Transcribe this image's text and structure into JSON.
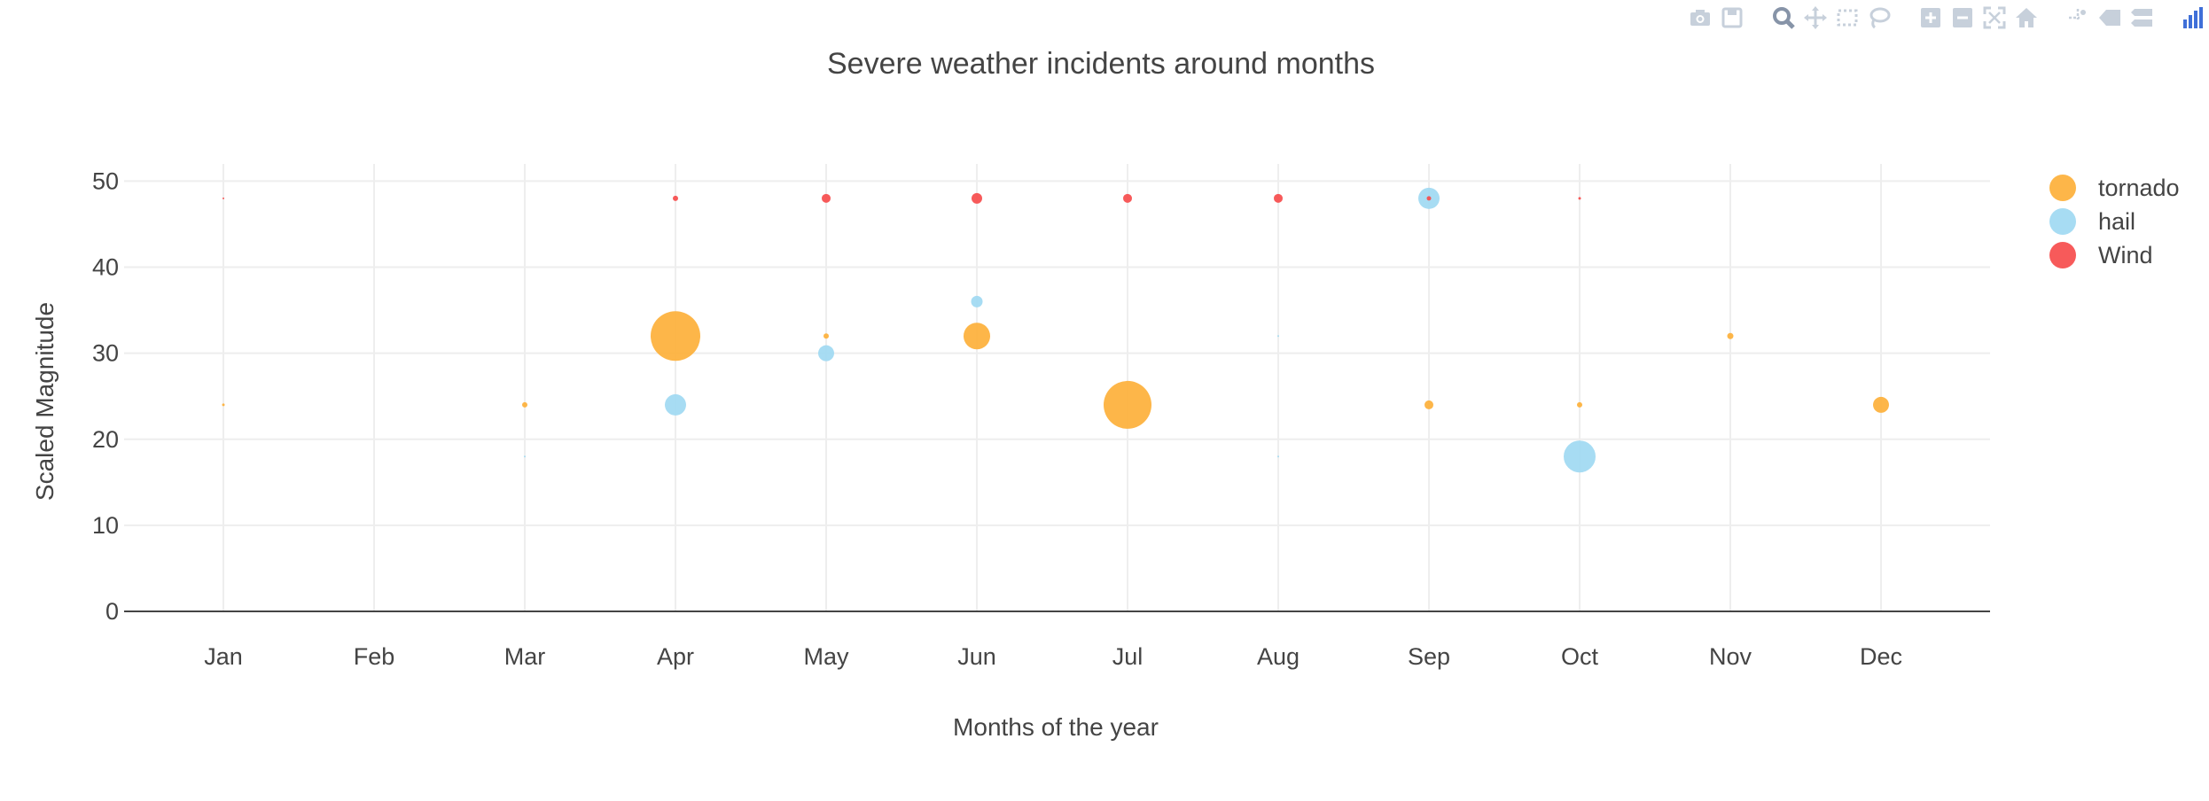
{
  "modebar": {
    "buttons": [
      {
        "group": 1,
        "icon": "camera-icon",
        "name": "download-png-button"
      },
      {
        "group": 1,
        "icon": "save-icon",
        "name": "save-to-cloud-button"
      },
      {
        "group": 2,
        "icon": "zoom-icon",
        "name": "zoom-button",
        "active": true
      },
      {
        "group": 2,
        "icon": "pan-icon",
        "name": "pan-button"
      },
      {
        "group": 2,
        "icon": "box-select-icon",
        "name": "box-select-button"
      },
      {
        "group": 2,
        "icon": "lasso-icon",
        "name": "lasso-select-button"
      },
      {
        "group": 3,
        "icon": "zoom-in-icon",
        "name": "zoom-in-button"
      },
      {
        "group": 3,
        "icon": "zoom-out-icon",
        "name": "zoom-out-button"
      },
      {
        "group": 3,
        "icon": "autoscale-icon",
        "name": "autoscale-button"
      },
      {
        "group": 3,
        "icon": "home-icon",
        "name": "reset-axes-button"
      },
      {
        "group": 4,
        "icon": "spike-lines-icon",
        "name": "toggle-spike-lines-button"
      },
      {
        "group": 4,
        "icon": "hover-closest-icon",
        "name": "hover-closest-button"
      },
      {
        "group": 4,
        "icon": "hover-compare-icon",
        "name": "hover-compare-button"
      },
      {
        "group": 5,
        "icon": "plotly-logo-icon",
        "name": "plotly-logo-link"
      }
    ],
    "colors": {
      "icon": "#c7d0db",
      "active": "#8794a8",
      "logo": "#3f6fd8"
    }
  },
  "chart_data": {
    "type": "scatter",
    "title": "Severe weather incidents around months",
    "xlabel": "Months of the year",
    "ylabel": "Scaled Magnitude",
    "categories": [
      "Jan",
      "Feb",
      "Mar",
      "Apr",
      "May",
      "Jun",
      "Jul",
      "Aug",
      "Sep",
      "Oct",
      "Nov",
      "Dec"
    ],
    "ylim": [
      0,
      52
    ],
    "yticks": [
      0,
      10,
      20,
      30,
      40,
      50
    ],
    "grid": true,
    "legend_position": "top-right",
    "series": [
      {
        "name": "tornado",
        "color": "#fdb03a",
        "points": [
          {
            "x": "Jan",
            "y": 24,
            "size": 3
          },
          {
            "x": "Mar",
            "y": 24,
            "size": 6
          },
          {
            "x": "Apr",
            "y": 32,
            "size": 56
          },
          {
            "x": "May",
            "y": 32,
            "size": 6
          },
          {
            "x": "Jun",
            "y": 32,
            "size": 30
          },
          {
            "x": "Jul",
            "y": 24,
            "size": 54
          },
          {
            "x": "Sep",
            "y": 24,
            "size": 10
          },
          {
            "x": "Oct",
            "y": 24,
            "size": 6
          },
          {
            "x": "Nov",
            "y": 32,
            "size": 7
          },
          {
            "x": "Dec",
            "y": 24,
            "size": 18
          }
        ]
      },
      {
        "name": "hail",
        "color": "#9fd9f2",
        "points": [
          {
            "x": "Mar",
            "y": 18,
            "size": 2
          },
          {
            "x": "Apr",
            "y": 24,
            "size": 24
          },
          {
            "x": "May",
            "y": 30,
            "size": 18
          },
          {
            "x": "Jun",
            "y": 36,
            "size": 13
          },
          {
            "x": "Aug",
            "y": 32,
            "size": 2
          },
          {
            "x": "Aug",
            "y": 18,
            "size": 2
          },
          {
            "x": "Sep",
            "y": 48,
            "size": 24
          },
          {
            "x": "Oct",
            "y": 18,
            "size": 36
          }
        ]
      },
      {
        "name": "Wind",
        "color": "#f64c4c",
        "points": [
          {
            "x": "Jan",
            "y": 48,
            "size": 2
          },
          {
            "x": "Apr",
            "y": 48,
            "size": 6
          },
          {
            "x": "May",
            "y": 48,
            "size": 10
          },
          {
            "x": "Jun",
            "y": 48,
            "size": 12
          },
          {
            "x": "Jul",
            "y": 48,
            "size": 10
          },
          {
            "x": "Aug",
            "y": 48,
            "size": 10
          },
          {
            "x": "Sep",
            "y": 48,
            "size": 5
          },
          {
            "x": "Oct",
            "y": 48,
            "size": 3
          }
        ]
      }
    ]
  }
}
